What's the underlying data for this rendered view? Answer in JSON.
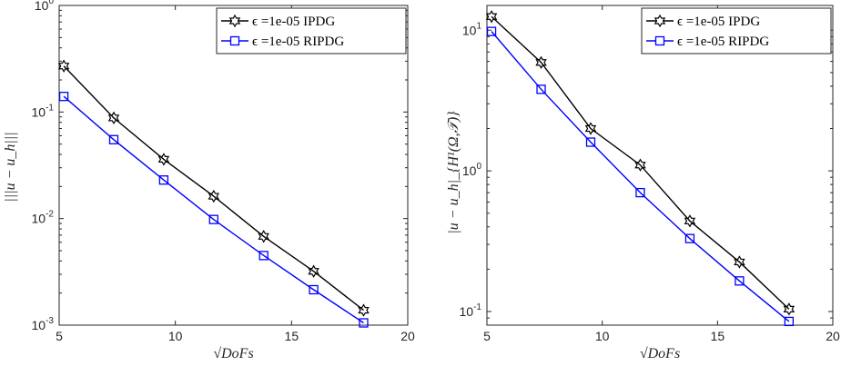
{
  "chart_data": [
    {
      "type": "line",
      "xlabel": "√DoFs",
      "ylabel": "|||u − u_h|||",
      "xlim": [
        5,
        20
      ],
      "ylim": [
        0.001,
        1
      ],
      "yscale": "log",
      "grid": false,
      "legend_position": "top-right",
      "x_ticks": [
        "5",
        "10",
        "15",
        "20"
      ],
      "y_ticks": [
        {
          "base": "10",
          "exp": "-3"
        },
        {
          "base": "10",
          "exp": "-2"
        },
        {
          "base": "10",
          "exp": "-1"
        },
        {
          "base": "10",
          "exp": "0"
        }
      ],
      "series": [
        {
          "name": "ϵ =1e-05 IPDG",
          "color": "#000000",
          "marker": "hexagram",
          "x": [
            5.2,
            7.35,
            9.5,
            11.65,
            13.8,
            15.95,
            18.1
          ],
          "y": [
            0.27,
            0.088,
            0.036,
            0.0162,
            0.0068,
            0.0032,
            0.00138
          ]
        },
        {
          "name": "ϵ =1e-05 RIPDG",
          "color": "#0000ff",
          "marker": "square",
          "x": [
            5.2,
            7.35,
            9.5,
            11.65,
            13.8,
            15.95,
            18.1
          ],
          "y": [
            0.14,
            0.055,
            0.023,
            0.0098,
            0.0045,
            0.00215,
            0.00105
          ]
        }
      ]
    },
    {
      "type": "line",
      "xlabel": "√DoFs",
      "ylabel": "|u − u_h|_{H¹(Ω,𝒯)}",
      "xlim": [
        5,
        20
      ],
      "ylim": [
        0.08,
        15
      ],
      "yscale": "log",
      "grid": false,
      "legend_position": "top-right",
      "x_ticks": [
        "5",
        "10",
        "15",
        "20"
      ],
      "y_ticks": [
        {
          "base": "10",
          "exp": "-1"
        },
        {
          "base": "10",
          "exp": "0"
        },
        {
          "base": "10",
          "exp": "1"
        }
      ],
      "series": [
        {
          "name": "ϵ =1e-05 IPDG",
          "color": "#000000",
          "marker": "hexagram",
          "x": [
            5.2,
            7.35,
            9.5,
            11.65,
            13.8,
            15.95,
            18.1
          ],
          "y": [
            12.5,
            5.9,
            2.0,
            1.1,
            0.44,
            0.225,
            0.104
          ]
        },
        {
          "name": "ϵ =1e-05 RIPDG",
          "color": "#0000ff",
          "marker": "square",
          "x": [
            5.2,
            7.35,
            9.5,
            11.65,
            13.8,
            15.95,
            18.1
          ],
          "y": [
            9.8,
            3.8,
            1.6,
            0.7,
            0.33,
            0.165,
            0.085
          ]
        }
      ]
    }
  ]
}
